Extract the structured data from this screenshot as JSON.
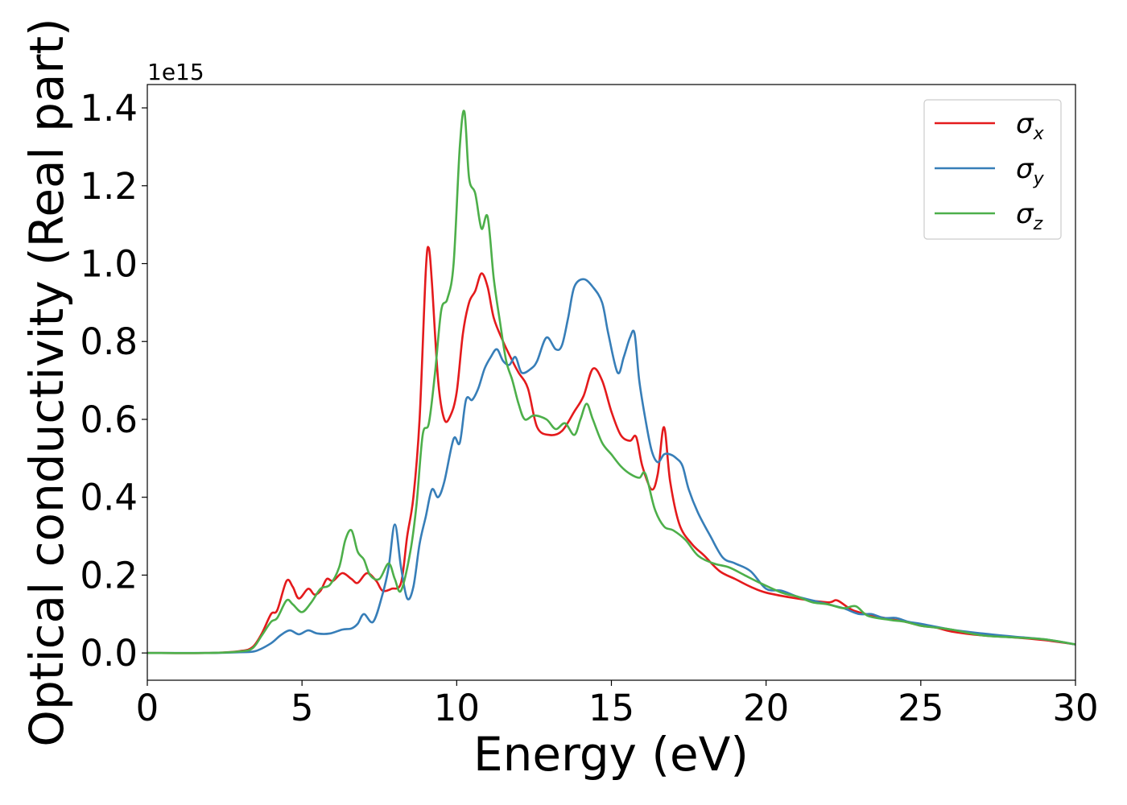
{
  "chart_data": {
    "type": "line",
    "title": "",
    "xlabel": "Energy (eV)",
    "ylabel": "Optical conductivity (Real part)",
    "y_offset_label": "1e15",
    "xlim": [
      0,
      30
    ],
    "ylim": [
      -0.07,
      1.46
    ],
    "y_unit_scale": 1000000000000000.0,
    "xticks": [
      0,
      5,
      10,
      15,
      20,
      25,
      30
    ],
    "xtick_labels": [
      "0",
      "5",
      "10",
      "15",
      "20",
      "25",
      "30"
    ],
    "yticks": [
      0.0,
      0.2,
      0.4,
      0.6,
      0.8,
      1.0,
      1.2,
      1.4
    ],
    "ytick_labels": [
      "0.0",
      "0.2",
      "0.4",
      "0.6",
      "0.8",
      "1.0",
      "1.2",
      "1.4"
    ],
    "grid": false,
    "legend_position": "top-right",
    "series": [
      {
        "name": "σx",
        "symbol": "σ",
        "subscript": "x",
        "color": "#e41a1c",
        "points": [
          [
            0,
            0
          ],
          [
            2,
            0.0
          ],
          [
            3,
            0.005
          ],
          [
            3.4,
            0.015
          ],
          [
            3.7,
            0.05
          ],
          [
            4.0,
            0.1
          ],
          [
            4.2,
            0.11
          ],
          [
            4.5,
            0.185
          ],
          [
            4.7,
            0.17
          ],
          [
            4.9,
            0.14
          ],
          [
            5.2,
            0.165
          ],
          [
            5.4,
            0.15
          ],
          [
            5.6,
            0.16
          ],
          [
            5.8,
            0.19
          ],
          [
            6.0,
            0.185
          ],
          [
            6.3,
            0.205
          ],
          [
            6.6,
            0.19
          ],
          [
            6.8,
            0.18
          ],
          [
            7.1,
            0.205
          ],
          [
            7.4,
            0.185
          ],
          [
            7.6,
            0.16
          ],
          [
            7.9,
            0.165
          ],
          [
            8.2,
            0.18
          ],
          [
            8.4,
            0.3
          ],
          [
            8.6,
            0.4
          ],
          [
            8.8,
            0.6
          ],
          [
            9.0,
            0.98
          ],
          [
            9.1,
            1.04
          ],
          [
            9.2,
            0.95
          ],
          [
            9.4,
            0.7
          ],
          [
            9.6,
            0.6
          ],
          [
            9.8,
            0.61
          ],
          [
            10.0,
            0.67
          ],
          [
            10.2,
            0.82
          ],
          [
            10.4,
            0.9
          ],
          [
            10.6,
            0.93
          ],
          [
            10.8,
            0.975
          ],
          [
            11.0,
            0.94
          ],
          [
            11.2,
            0.86
          ],
          [
            11.5,
            0.8
          ],
          [
            11.8,
            0.75
          ],
          [
            12.0,
            0.72
          ],
          [
            12.3,
            0.68
          ],
          [
            12.6,
            0.58
          ],
          [
            13.0,
            0.56
          ],
          [
            13.4,
            0.57
          ],
          [
            13.8,
            0.62
          ],
          [
            14.1,
            0.66
          ],
          [
            14.4,
            0.73
          ],
          [
            14.7,
            0.7
          ],
          [
            15.0,
            0.62
          ],
          [
            15.3,
            0.56
          ],
          [
            15.6,
            0.545
          ],
          [
            15.8,
            0.555
          ],
          [
            16.0,
            0.48
          ],
          [
            16.3,
            0.42
          ],
          [
            16.5,
            0.46
          ],
          [
            16.7,
            0.58
          ],
          [
            16.9,
            0.44
          ],
          [
            17.2,
            0.33
          ],
          [
            17.6,
            0.28
          ],
          [
            18.0,
            0.25
          ],
          [
            18.5,
            0.21
          ],
          [
            19.0,
            0.19
          ],
          [
            19.5,
            0.17
          ],
          [
            20.0,
            0.155
          ],
          [
            21.0,
            0.14
          ],
          [
            22.0,
            0.13
          ],
          [
            22.3,
            0.135
          ],
          [
            22.8,
            0.11
          ],
          [
            23.5,
            0.095
          ],
          [
            24.5,
            0.08
          ],
          [
            25.0,
            0.07
          ],
          [
            25.5,
            0.065
          ],
          [
            26.0,
            0.055
          ],
          [
            27.0,
            0.045
          ],
          [
            28.0,
            0.04
          ],
          [
            29.0,
            0.033
          ],
          [
            30.0,
            0.022
          ]
        ]
      },
      {
        "name": "σy",
        "symbol": "σ",
        "subscript": "y",
        "color": "#377eb8",
        "points": [
          [
            0,
            0
          ],
          [
            2,
            0.0
          ],
          [
            3,
            0.002
          ],
          [
            3.5,
            0.005
          ],
          [
            4.0,
            0.025
          ],
          [
            4.3,
            0.045
          ],
          [
            4.6,
            0.058
          ],
          [
            4.9,
            0.048
          ],
          [
            5.2,
            0.058
          ],
          [
            5.5,
            0.05
          ],
          [
            5.9,
            0.05
          ],
          [
            6.3,
            0.06
          ],
          [
            6.6,
            0.063
          ],
          [
            6.8,
            0.075
          ],
          [
            7.0,
            0.1
          ],
          [
            7.3,
            0.08
          ],
          [
            7.6,
            0.15
          ],
          [
            7.8,
            0.22
          ],
          [
            8.0,
            0.33
          ],
          [
            8.2,
            0.22
          ],
          [
            8.4,
            0.14
          ],
          [
            8.6,
            0.17
          ],
          [
            8.8,
            0.28
          ],
          [
            9.0,
            0.35
          ],
          [
            9.2,
            0.42
          ],
          [
            9.4,
            0.4
          ],
          [
            9.6,
            0.44
          ],
          [
            9.9,
            0.55
          ],
          [
            10.1,
            0.54
          ],
          [
            10.3,
            0.65
          ],
          [
            10.5,
            0.65
          ],
          [
            10.7,
            0.68
          ],
          [
            10.9,
            0.73
          ],
          [
            11.1,
            0.76
          ],
          [
            11.3,
            0.78
          ],
          [
            11.5,
            0.75
          ],
          [
            11.7,
            0.74
          ],
          [
            11.9,
            0.76
          ],
          [
            12.1,
            0.72
          ],
          [
            12.4,
            0.73
          ],
          [
            12.6,
            0.75
          ],
          [
            12.9,
            0.81
          ],
          [
            13.2,
            0.78
          ],
          [
            13.4,
            0.79
          ],
          [
            13.6,
            0.86
          ],
          [
            13.8,
            0.94
          ],
          [
            14.1,
            0.96
          ],
          [
            14.4,
            0.94
          ],
          [
            14.7,
            0.9
          ],
          [
            14.9,
            0.82
          ],
          [
            15.2,
            0.72
          ],
          [
            15.4,
            0.76
          ],
          [
            15.6,
            0.81
          ],
          [
            15.75,
            0.82
          ],
          [
            15.9,
            0.7
          ],
          [
            16.1,
            0.6
          ],
          [
            16.3,
            0.52
          ],
          [
            16.5,
            0.49
          ],
          [
            16.7,
            0.51
          ],
          [
            16.9,
            0.51
          ],
          [
            17.1,
            0.5
          ],
          [
            17.3,
            0.48
          ],
          [
            17.5,
            0.42
          ],
          [
            17.8,
            0.36
          ],
          [
            18.2,
            0.3
          ],
          [
            18.6,
            0.245
          ],
          [
            19.0,
            0.23
          ],
          [
            19.5,
            0.21
          ],
          [
            20.0,
            0.165
          ],
          [
            20.5,
            0.16
          ],
          [
            21.0,
            0.145
          ],
          [
            21.5,
            0.135
          ],
          [
            22.0,
            0.125
          ],
          [
            22.5,
            0.115
          ],
          [
            23.0,
            0.1
          ],
          [
            23.4,
            0.1
          ],
          [
            23.8,
            0.09
          ],
          [
            24.2,
            0.09
          ],
          [
            24.6,
            0.08
          ],
          [
            25.0,
            0.075
          ],
          [
            26.0,
            0.06
          ],
          [
            27.0,
            0.05
          ],
          [
            28.0,
            0.042
          ],
          [
            29.0,
            0.035
          ],
          [
            30.0,
            0.022
          ]
        ]
      },
      {
        "name": "σz",
        "symbol": "σ",
        "subscript": "z",
        "color": "#4daf4a",
        "points": [
          [
            0,
            0
          ],
          [
            2,
            0.0
          ],
          [
            3,
            0.004
          ],
          [
            3.4,
            0.012
          ],
          [
            3.7,
            0.045
          ],
          [
            4.0,
            0.08
          ],
          [
            4.2,
            0.09
          ],
          [
            4.5,
            0.135
          ],
          [
            4.7,
            0.125
          ],
          [
            5.0,
            0.105
          ],
          [
            5.3,
            0.13
          ],
          [
            5.6,
            0.165
          ],
          [
            5.9,
            0.175
          ],
          [
            6.2,
            0.22
          ],
          [
            6.4,
            0.29
          ],
          [
            6.6,
            0.315
          ],
          [
            6.8,
            0.26
          ],
          [
            7.0,
            0.24
          ],
          [
            7.2,
            0.2
          ],
          [
            7.5,
            0.19
          ],
          [
            7.8,
            0.23
          ],
          [
            8.0,
            0.19
          ],
          [
            8.2,
            0.16
          ],
          [
            8.5,
            0.26
          ],
          [
            8.7,
            0.38
          ],
          [
            8.9,
            0.56
          ],
          [
            9.1,
            0.59
          ],
          [
            9.3,
            0.72
          ],
          [
            9.5,
            0.88
          ],
          [
            9.7,
            0.91
          ],
          [
            9.9,
            1.0
          ],
          [
            10.1,
            1.3
          ],
          [
            10.25,
            1.39
          ],
          [
            10.4,
            1.22
          ],
          [
            10.6,
            1.18
          ],
          [
            10.8,
            1.09
          ],
          [
            11.0,
            1.12
          ],
          [
            11.2,
            0.96
          ],
          [
            11.4,
            0.85
          ],
          [
            11.6,
            0.75
          ],
          [
            11.8,
            0.7
          ],
          [
            12.0,
            0.64
          ],
          [
            12.2,
            0.6
          ],
          [
            12.5,
            0.61
          ],
          [
            12.9,
            0.6
          ],
          [
            13.2,
            0.575
          ],
          [
            13.5,
            0.59
          ],
          [
            13.8,
            0.56
          ],
          [
            14.0,
            0.6
          ],
          [
            14.2,
            0.64
          ],
          [
            14.4,
            0.6
          ],
          [
            14.7,
            0.54
          ],
          [
            15.0,
            0.51
          ],
          [
            15.3,
            0.48
          ],
          [
            15.6,
            0.46
          ],
          [
            15.9,
            0.45
          ],
          [
            16.1,
            0.46
          ],
          [
            16.4,
            0.37
          ],
          [
            16.7,
            0.325
          ],
          [
            17.0,
            0.315
          ],
          [
            17.4,
            0.29
          ],
          [
            17.8,
            0.25
          ],
          [
            18.3,
            0.23
          ],
          [
            18.8,
            0.22
          ],
          [
            19.3,
            0.2
          ],
          [
            19.8,
            0.18
          ],
          [
            20.5,
            0.155
          ],
          [
            21.0,
            0.145
          ],
          [
            21.5,
            0.13
          ],
          [
            22.0,
            0.125
          ],
          [
            22.5,
            0.115
          ],
          [
            22.9,
            0.12
          ],
          [
            23.3,
            0.095
          ],
          [
            24.0,
            0.085
          ],
          [
            24.5,
            0.08
          ],
          [
            25.0,
            0.07
          ],
          [
            25.5,
            0.065
          ],
          [
            26.0,
            0.06
          ],
          [
            27.0,
            0.045
          ],
          [
            28.0,
            0.04
          ],
          [
            29.0,
            0.035
          ],
          [
            30.0,
            0.022
          ]
        ]
      }
    ]
  }
}
